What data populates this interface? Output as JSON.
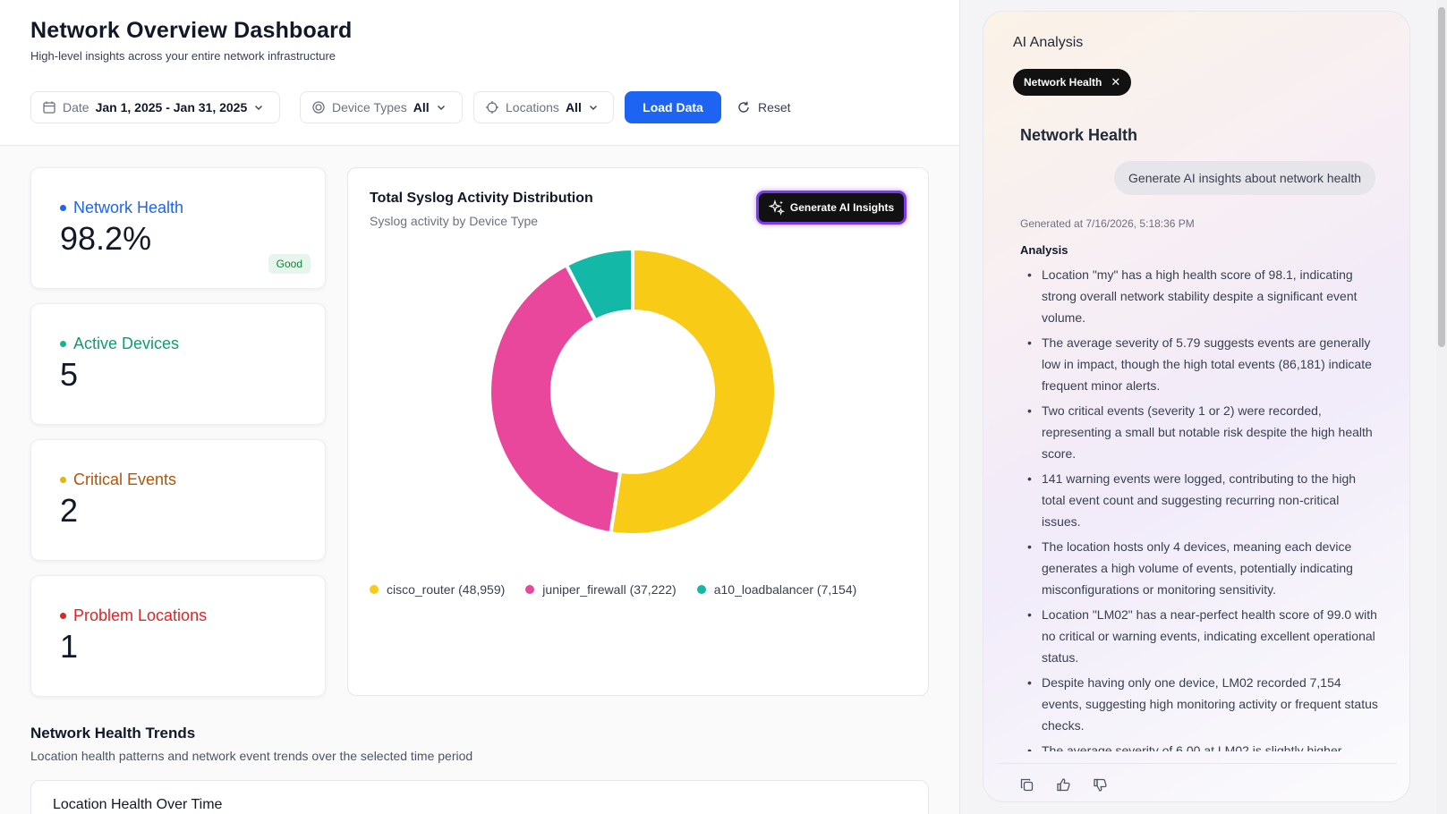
{
  "header": {
    "title": "Network Overview Dashboard",
    "subtitle": "High-level insights across your entire network infrastructure"
  },
  "filters": {
    "date": {
      "label": "Date",
      "value": "Jan 1, 2025 - Jan 31, 2025",
      "icon": "calendar-icon"
    },
    "device_types": {
      "label": "Device Types",
      "value": "All",
      "icon": "target-icon"
    },
    "locations": {
      "label": "Locations",
      "value": "All",
      "icon": "crosshair-icon"
    },
    "load_label": "Load Data",
    "reset_label": "Reset"
  },
  "kpis": [
    {
      "label": "Network Health",
      "value": "98.2%",
      "badge": "Good",
      "color": "#1d64f2"
    },
    {
      "label": "Active Devices",
      "value": "5",
      "color": "#0f9d6e"
    },
    {
      "label": "Critical Events",
      "value": "2",
      "color": "#eab308",
      "label_color": "#b45309"
    },
    {
      "label": "Problem Locations",
      "value": "1",
      "color": "#dc2626"
    }
  ],
  "chart": {
    "title": "Total Syslog Activity Distribution",
    "subtitle": "Syslog activity by Device Type",
    "ai_button_label": "Generate AI Insights",
    "legend": [
      "cisco_router (48,959)",
      "juniper_firewall (37,222)",
      "a10_loadbalancer (7,154)"
    ]
  },
  "chart_data": {
    "type": "pie",
    "title": "Total Syslog Activity Distribution",
    "subtitle": "Syslog activity by Device Type",
    "categories": [
      "cisco_router",
      "juniper_firewall",
      "a10_loadbalancer"
    ],
    "values": [
      48959,
      37222,
      7154
    ],
    "colors": [
      "#f8cb16",
      "#e8479b",
      "#13b8a6"
    ],
    "donut": true,
    "legend_position": "bottom"
  },
  "trends": {
    "title": "Network Health Trends",
    "subtitle": "Location health patterns and network event trends over the selected time period",
    "card_title": "Location Health Over Time"
  },
  "ai": {
    "heading": "AI Analysis",
    "chip_label": "Network Health",
    "topic": "Network Health",
    "prompt": "Generate AI insights about network health",
    "generated_at": "Generated at 7/16/2026, 5:18:36 PM",
    "analysis_title": "Analysis",
    "bullets": [
      "Location \"my\" has a high health score of 98.1, indicating strong overall network stability despite a significant event volume.",
      "The average severity of 5.79 suggests events are generally low in impact, though the high total events (86,181) indicate frequent minor alerts.",
      "Two critical events (severity 1 or 2) were recorded, representing a small but notable risk despite the high health score.",
      "141 warning events were logged, contributing to the high total event count and suggesting recurring non-critical issues.",
      "The location hosts only 4 devices, meaning each device generates a high volume of events, potentially indicating misconfigurations or monitoring sensitivity.",
      "Location \"LM02\" has a near-perfect health score of 99.0 with no critical or warning events, indicating excellent operational status.",
      "Despite having only one device, LM02 recorded 7,154 events, suggesting high monitoring activity or frequent status checks.",
      "The average severity of 6.00 at LM02 is slightly higher"
    ],
    "actions": [
      "copy-icon",
      "thumbs-up-icon",
      "thumbs-down-icon"
    ]
  }
}
